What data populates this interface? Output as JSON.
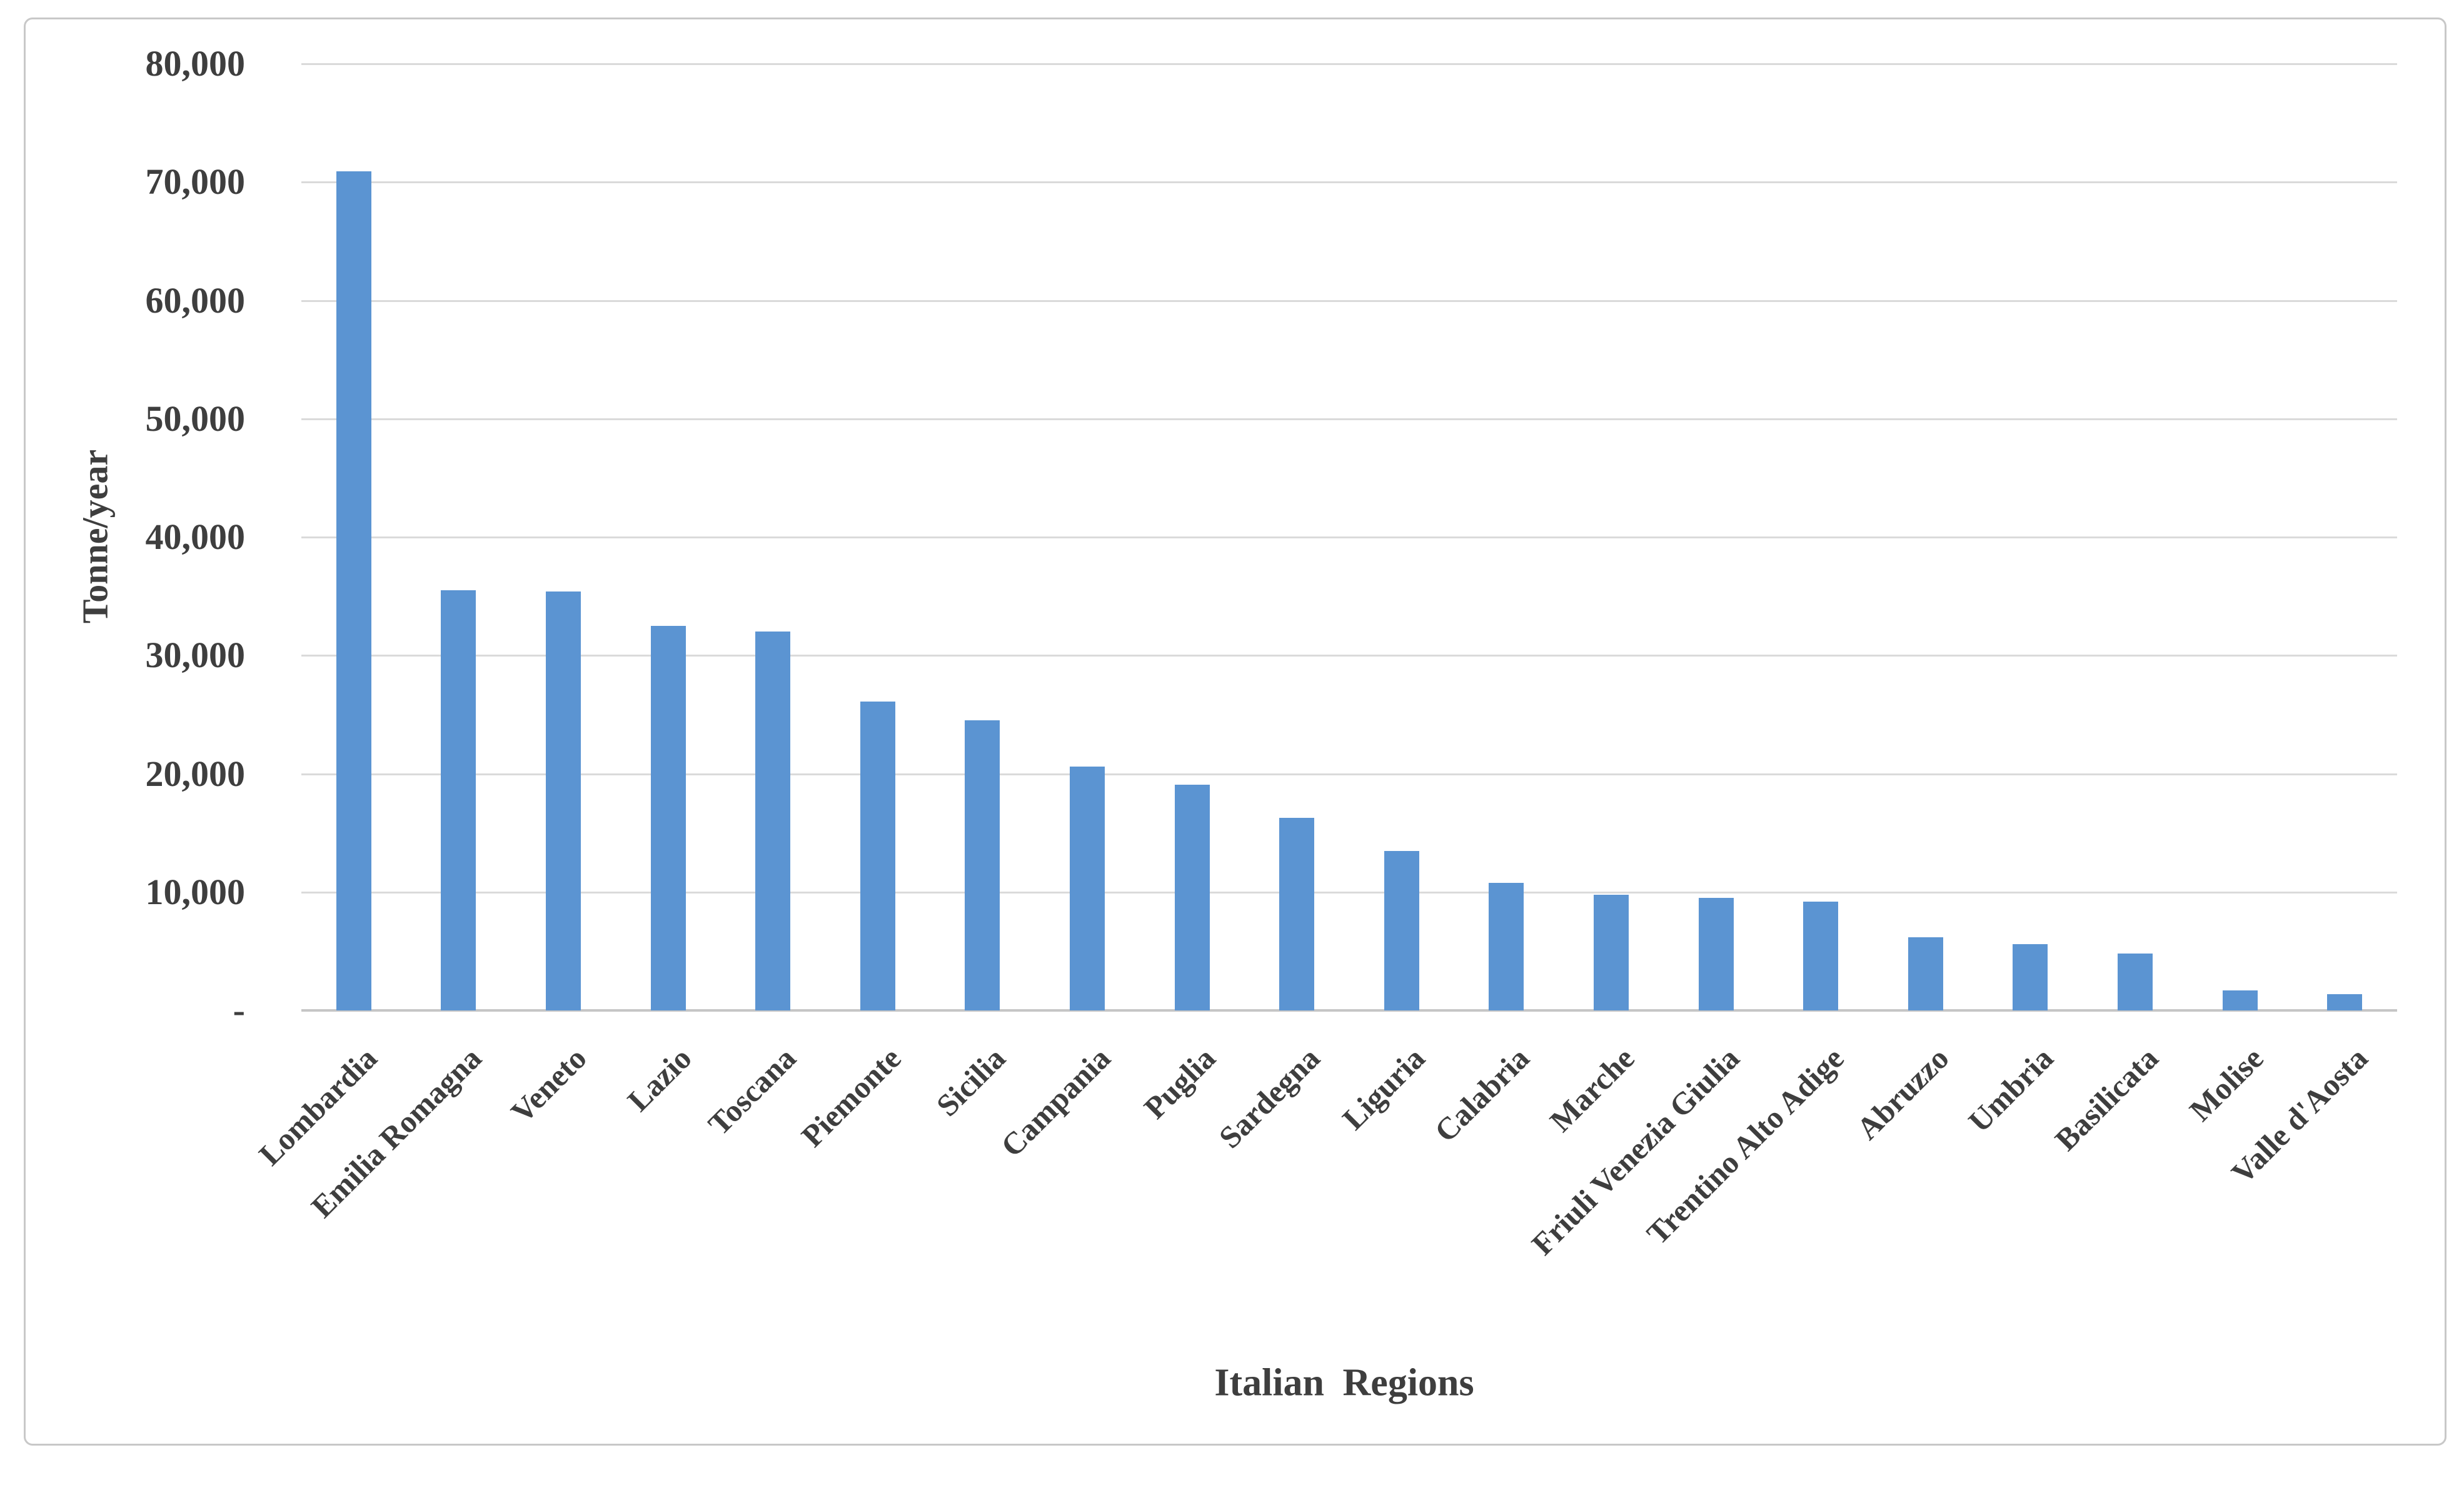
{
  "chart_data": {
    "type": "bar",
    "title": "",
    "xlabel": "Italian Regions",
    "ylabel": "Tonne/year",
    "categories": [
      "Lombardia",
      "Emilia Romagna",
      "Veneto",
      "Lazio",
      "Toscana",
      "Piemonte",
      "Sicilia",
      "Campania",
      "Puglia",
      "Sardegna",
      "Liguria",
      "Calabria",
      "Marche",
      "Friuli Venezia Giulia",
      "Trentino Alto Adige",
      "Abruzzo",
      "Umbria",
      "Basilicata",
      "Molise",
      "Valle d'Aosta"
    ],
    "values": [
      70900,
      35500,
      35400,
      32500,
      32000,
      26100,
      24500,
      20600,
      19100,
      16300,
      13500,
      10800,
      9800,
      9500,
      9200,
      6200,
      5600,
      4800,
      1700,
      1400
    ],
    "ylim": [
      0,
      80000
    ],
    "ytick_step": 10000,
    "yticks": [
      {
        "value": 80000,
        "label": "80,000"
      },
      {
        "value": 70000,
        "label": "70,000"
      },
      {
        "value": 60000,
        "label": "60,000"
      },
      {
        "value": 50000,
        "label": "50,000"
      },
      {
        "value": 40000,
        "label": "40,000"
      },
      {
        "value": 30000,
        "label": "30,000"
      },
      {
        "value": 20000,
        "label": "20,000"
      },
      {
        "value": 10000,
        "label": "10,000"
      },
      {
        "value": 0,
        "label": "-"
      }
    ],
    "grid": true,
    "legend": false,
    "bar_color": "#5b94d2",
    "gridline_color": "#dadada",
    "axis_line_color": "#c6c6c6",
    "text_color": "#3e3e3e",
    "frame_border_color": "#c8c8c8"
  }
}
